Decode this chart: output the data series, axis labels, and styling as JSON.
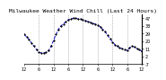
{
  "title": "Milwaukee Weather Wind Chill (Last 24 Hours)",
  "bg_color": "#ffffff",
  "line_color": "#0000cc",
  "marker_color": "#000000",
  "grid_color": "#888888",
  "ylim": [
    -7,
    52
  ],
  "yticks": [
    -7,
    2,
    11,
    20,
    29,
    38,
    47
  ],
  "ytick_labels": [
    "-7",
    "2",
    "11",
    "20",
    "29",
    "38",
    "47"
  ],
  "x_values": [
    0,
    1,
    2,
    3,
    4,
    5,
    6,
    7,
    8,
    9,
    10,
    11,
    12,
    13,
    14,
    15,
    16,
    17,
    18,
    19,
    20,
    21,
    22,
    23,
    24,
    25,
    26,
    27,
    28,
    29,
    30,
    31,
    32,
    33,
    34,
    35,
    36,
    37,
    38,
    39,
    40,
    41,
    42,
    43,
    44,
    45,
    46,
    47,
    48
  ],
  "y_values": [
    28,
    25,
    22,
    18,
    14,
    10,
    7,
    6,
    6,
    7,
    9,
    14,
    21,
    28,
    34,
    38,
    40,
    43,
    45,
    46,
    47,
    47,
    46,
    46,
    45,
    44,
    43,
    42,
    41,
    40,
    39,
    37,
    34,
    31,
    27,
    23,
    19,
    16,
    14,
    12,
    11,
    10,
    9,
    12,
    14,
    13,
    11,
    10,
    8
  ],
  "grid_x_positions": [
    6,
    12,
    18,
    24,
    30,
    36,
    42
  ],
  "xtick_positions": [
    0,
    6,
    12,
    18,
    24,
    30,
    36,
    42,
    48
  ],
  "xtick_labels": [
    "12",
    "6",
    "12",
    "6",
    "12",
    "6",
    "12",
    "6",
    "12"
  ],
  "title_fontsize": 4.5,
  "tick_fontsize": 3.5,
  "line_width": 0.7,
  "marker_size": 1.2
}
